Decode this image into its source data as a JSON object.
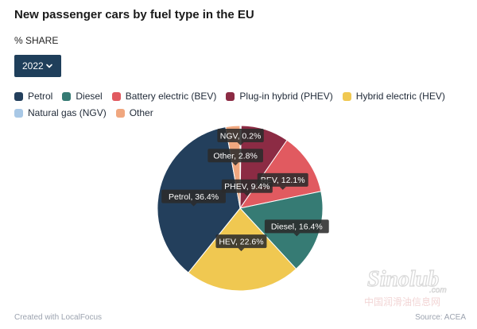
{
  "title": "New passenger cars by fuel type in the EU",
  "subtitle": "% SHARE",
  "dropdown": {
    "selected": "2022"
  },
  "chart_data": {
    "type": "pie",
    "title": "New passenger cars by fuel type in the EU",
    "subtitle": "% SHARE",
    "unit": "%",
    "legend_position": "top",
    "slices": [
      {
        "name": "Petrol",
        "value": 36.4,
        "color": "#233f5c",
        "label": "Petrol, 36.4%"
      },
      {
        "name": "Diesel",
        "value": 16.4,
        "color": "#367b74",
        "label": "Diesel, 16.4%"
      },
      {
        "name": "Battery electric (BEV)",
        "value": 12.1,
        "color": "#e15a60",
        "label": "BEV, 12.1%"
      },
      {
        "name": "Plug-in hybrid (PHEV)",
        "value": 9.4,
        "color": "#8c2b44",
        "label": "PHEV, 9.4%"
      },
      {
        "name": "Hybrid electric (HEV)",
        "value": 22.6,
        "color": "#f0c851",
        "label": "HEV, 22.6%"
      },
      {
        "name": "Natural gas (NGV)",
        "value": 0.2,
        "color": "#a8c8e6",
        "label": "NGV, 0.2%"
      },
      {
        "name": "Other",
        "value": 2.8,
        "color": "#f0a77f",
        "label": "Other, 2.8%"
      }
    ]
  },
  "legend": [
    {
      "label": "Petrol",
      "color": "#233f5c"
    },
    {
      "label": "Diesel",
      "color": "#367b74"
    },
    {
      "label": "Battery electric (BEV)",
      "color": "#e15a60"
    },
    {
      "label": "Plug-in hybrid (PHEV)",
      "color": "#8c2b44"
    },
    {
      "label": "Hybrid electric (HEV)",
      "color": "#f0c851"
    },
    {
      "label": "Natural gas (NGV)",
      "color": "#a8c8e6"
    },
    {
      "label": "Other",
      "color": "#f0a77f"
    }
  ],
  "footer": {
    "credit": "Created with LocalFocus",
    "source": "Source: ACEA"
  },
  "watermark": {
    "brand": "Sinolub",
    "domain": ".com",
    "chinese": "中国润滑油信息网"
  }
}
